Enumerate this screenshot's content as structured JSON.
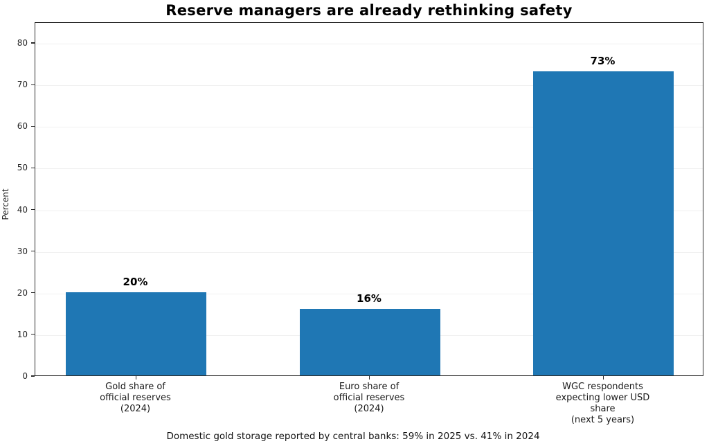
{
  "chart_data": {
    "type": "bar",
    "title": "Reserve managers are already rethinking safety",
    "ylabel": "Percent",
    "xlabel": "",
    "categories": [
      "Gold share of\nofficial reserves\n(2024)",
      "Euro share of\nofficial reserves\n(2024)",
      "WGC respondents\nexpecting lower USD share\n(next 5 years)"
    ],
    "values": [
      20,
      16,
      73
    ],
    "value_labels": [
      "20%",
      "16%",
      "73%"
    ],
    "yticks": [
      0,
      10,
      20,
      30,
      40,
      50,
      60,
      70,
      80
    ],
    "ylim": [
      0,
      85
    ],
    "grid": "horizontal, light gray",
    "legend_position": "none",
    "bar_color": "#1f77b4",
    "note": "Domestic gold storage reported by central banks: 59% in 2025 vs. 41% in 2024"
  }
}
